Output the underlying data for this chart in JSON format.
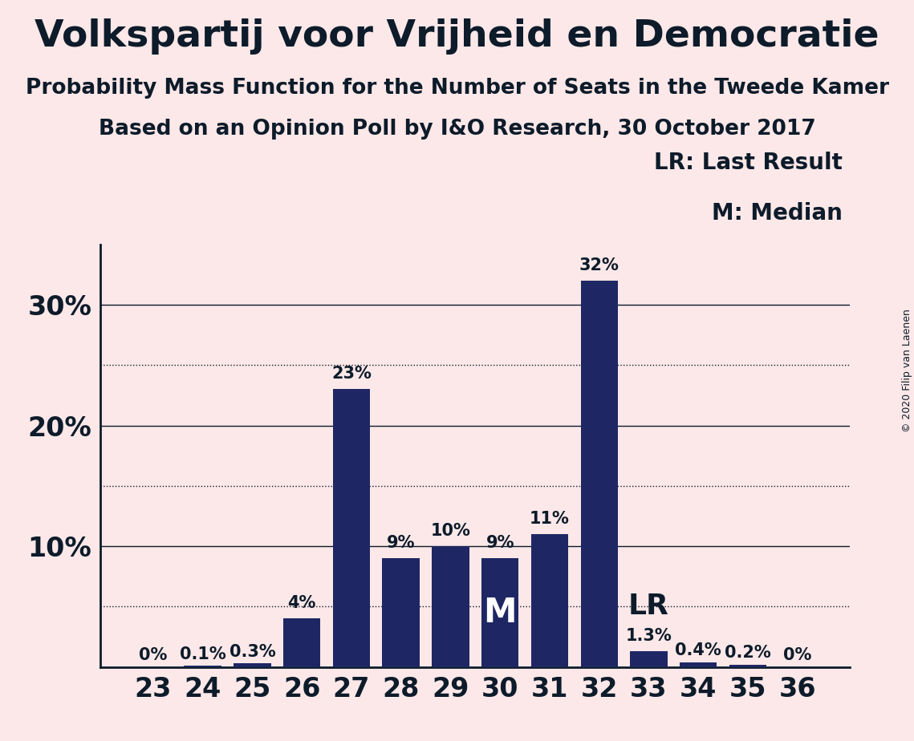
{
  "title": "Volkspartij voor Vrijheid en Democratie",
  "subtitle1": "Probability Mass Function for the Number of Seats in the Tweede Kamer",
  "subtitle2": "Based on an Opinion Poll by I&O Research, 30 October 2017",
  "copyright": "© 2020 Filip van Laenen",
  "categories": [
    23,
    24,
    25,
    26,
    27,
    28,
    29,
    30,
    31,
    32,
    33,
    34,
    35,
    36
  ],
  "values": [
    0.0,
    0.1,
    0.3,
    4.0,
    23.0,
    9.0,
    10.0,
    9.0,
    11.0,
    32.0,
    1.3,
    0.4,
    0.2,
    0.0
  ],
  "bar_color": "#1e2764",
  "background_color": "#fce8e8",
  "text_color": "#0d1b2a",
  "bar_labels": [
    "0%",
    "0.1%",
    "0.3%",
    "4%",
    "23%",
    "9%",
    "10%",
    "9%",
    "11%",
    "32%",
    "1.3%",
    "0.4%",
    "0.2%",
    "0%"
  ],
  "median_seat": 30,
  "lr_seat": 33,
  "ylim": [
    0,
    35
  ],
  "yticks": [
    0,
    10,
    20,
    30
  ],
  "ytick_labels": [
    "",
    "10%",
    "20%",
    "30%"
  ],
  "solid_gridlines": [
    10,
    20,
    30
  ],
  "dotted_gridlines": [
    5,
    15,
    25
  ],
  "legend_text": [
    "LR: Last Result",
    "M: Median"
  ]
}
